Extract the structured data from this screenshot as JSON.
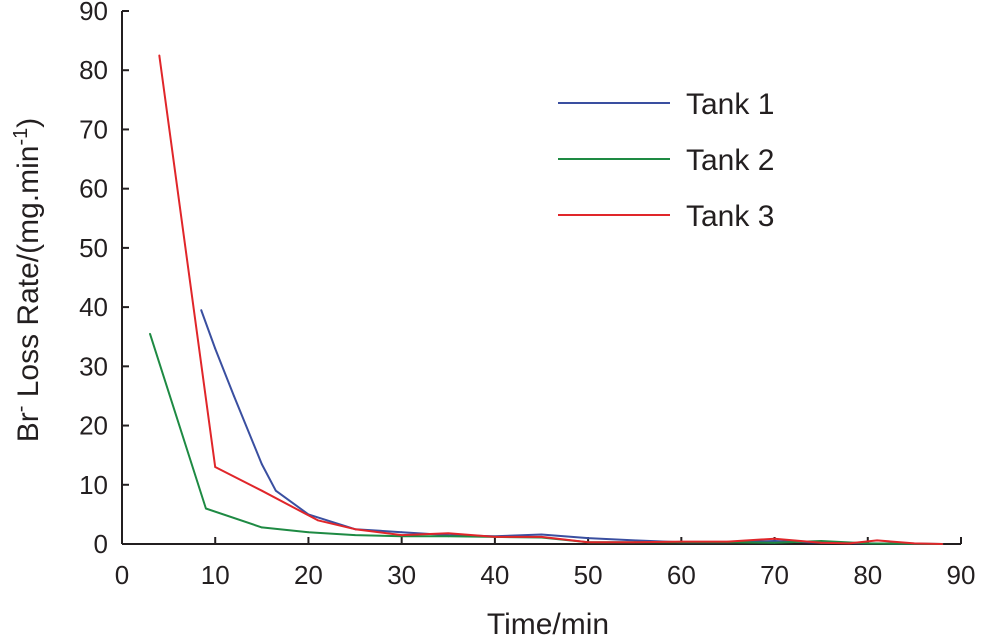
{
  "chart_data": {
    "type": "line",
    "title": "",
    "xlabel": "Time/min",
    "ylabel": {
      "prefix": "Br",
      "superscript_1": "-",
      "middle": " Loss Rate/(mg.min",
      "superscript_2": "-1",
      "suffix": ")"
    },
    "xlim": [
      0,
      90
    ],
    "ylim": [
      0,
      90
    ],
    "xticks": [
      0,
      10,
      20,
      30,
      40,
      50,
      60,
      70,
      80,
      90
    ],
    "yticks": [
      0,
      10,
      20,
      30,
      40,
      50,
      60,
      70,
      80,
      90
    ],
    "grid": false,
    "legend_position": "top-right",
    "series": [
      {
        "name": "Tank 1",
        "color": "#3a4fa0",
        "x": [
          8.5,
          10,
          12,
          15,
          16.5,
          20,
          25,
          30,
          35,
          40,
          45,
          50,
          55,
          60,
          65,
          70,
          75,
          80,
          88
        ],
        "y": [
          39.5,
          33,
          25,
          13.5,
          9,
          5,
          2.5,
          2,
          1.5,
          1.3,
          1.6,
          1,
          0.6,
          0.3,
          0.3,
          0.5,
          0.2,
          0.1,
          0
        ]
      },
      {
        "name": "Tank 2",
        "color": "#1e8a43",
        "x": [
          3,
          9,
          15,
          20,
          25,
          30,
          35,
          40,
          45,
          50,
          55,
          60,
          65,
          70,
          75,
          80,
          88
        ],
        "y": [
          35.5,
          6,
          2.8,
          2,
          1.5,
          1.3,
          1.3,
          1.2,
          1.1,
          0.3,
          0.3,
          0.3,
          0.3,
          0.2,
          0.5,
          0.1,
          0
        ]
      },
      {
        "name": "Tank 3",
        "color": "#e0262a",
        "x": [
          4,
          10,
          15,
          21,
          25,
          30,
          35,
          40,
          45,
          50,
          55,
          60,
          65,
          70,
          75,
          78,
          81,
          85,
          88
        ],
        "y": [
          82.5,
          13,
          9,
          4,
          2.5,
          1.5,
          1.8,
          1.2,
          1.2,
          0.3,
          0.3,
          0.4,
          0.4,
          0.9,
          0.2,
          0.1,
          0.6,
          0.1,
          0
        ]
      }
    ]
  }
}
